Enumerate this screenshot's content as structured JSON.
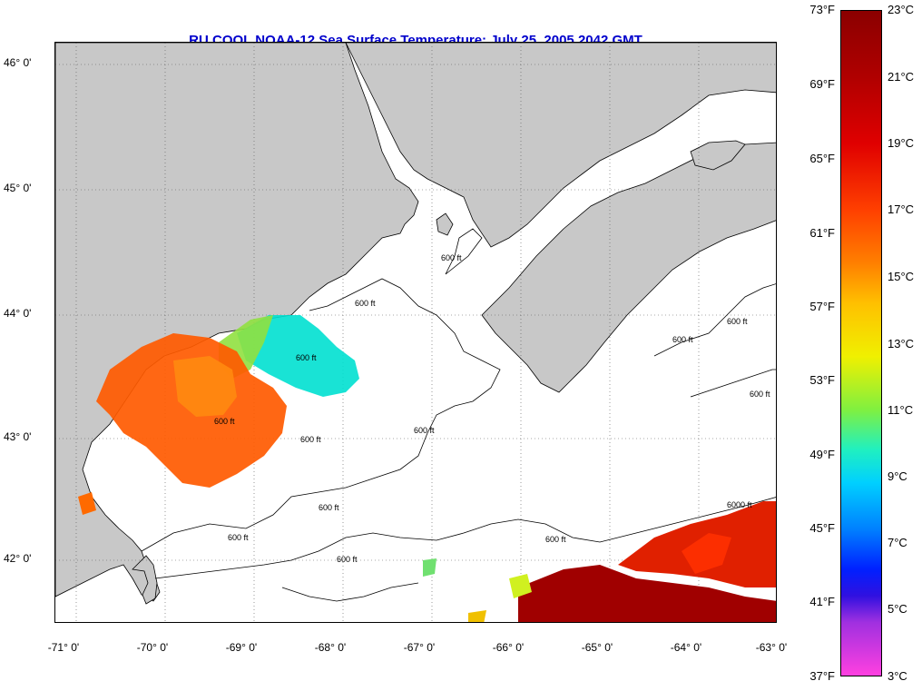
{
  "title": "RU COOL  NOAA-12  Sea Surface Temperature:  July 25, 2005 2042 GMT",
  "lat_labels": [
    "46° 0'",
    "45° 0'",
    "44° 0'",
    "43° 0'",
    "42° 0'"
  ],
  "lon_labels": [
    "-71° 0'",
    "-70° 0'",
    "-69° 0'",
    "-68° 0'",
    "-67° 0'",
    "-66° 0'",
    "-65° 0'",
    "-64° 0'",
    "-63° 0'"
  ],
  "colorbar": {
    "fahrenheit": [
      "73°F",
      "69°F",
      "65°F",
      "61°F",
      "57°F",
      "53°F",
      "49°F",
      "45°F",
      "41°F",
      "37°F"
    ],
    "celsius": [
      "23°C",
      "21°C",
      "19°C",
      "17°C",
      "15°C",
      "13°C",
      "11°C",
      "9°C",
      "7°C",
      "5°C",
      "3°C"
    ]
  },
  "contours": {
    "c600": "600 ft",
    "c6000": "6000 ft"
  },
  "colors": {
    "land": "#c8c8c8",
    "sst_warm": "#ff5a00",
    "sst_cool": "#00e0d0",
    "sst_mid": "#90e040",
    "sst_hot": "#a00000"
  }
}
